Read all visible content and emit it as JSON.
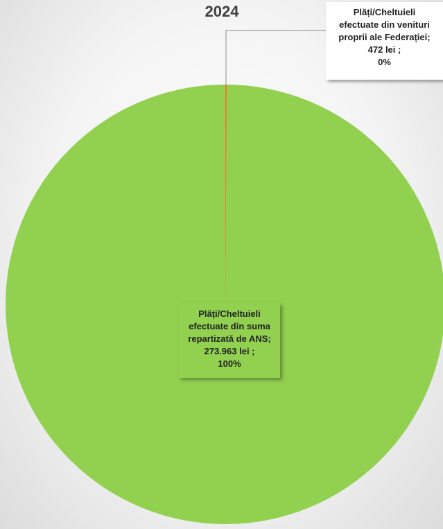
{
  "chart_data": {
    "type": "pie",
    "title": "2024",
    "slices": [
      {
        "name": "Plăți/Cheltuieli efectuate din suma repartizată de ANS",
        "label_lines": [
          "Plăți/Cheltuieli",
          "efectuate din suma",
          "repartizată de ANS;",
          "273.963 lei ;",
          "100%"
        ],
        "value": 273963,
        "value_text": "273.963 lei",
        "percent": "100%",
        "color": "#92d050"
      },
      {
        "name": "Plăți/Cheltuieli efectuate din venituri proprii ale Federației",
        "label_lines": [
          "Plăți/Cheltuieli",
          "efectuate din venituri",
          "proprii ale Federației;",
          "472 lei ;",
          "0%"
        ],
        "value": 472,
        "value_text": "472 lei",
        "percent": "0%",
        "color": "#ed7d31"
      }
    ],
    "legend": "none"
  }
}
